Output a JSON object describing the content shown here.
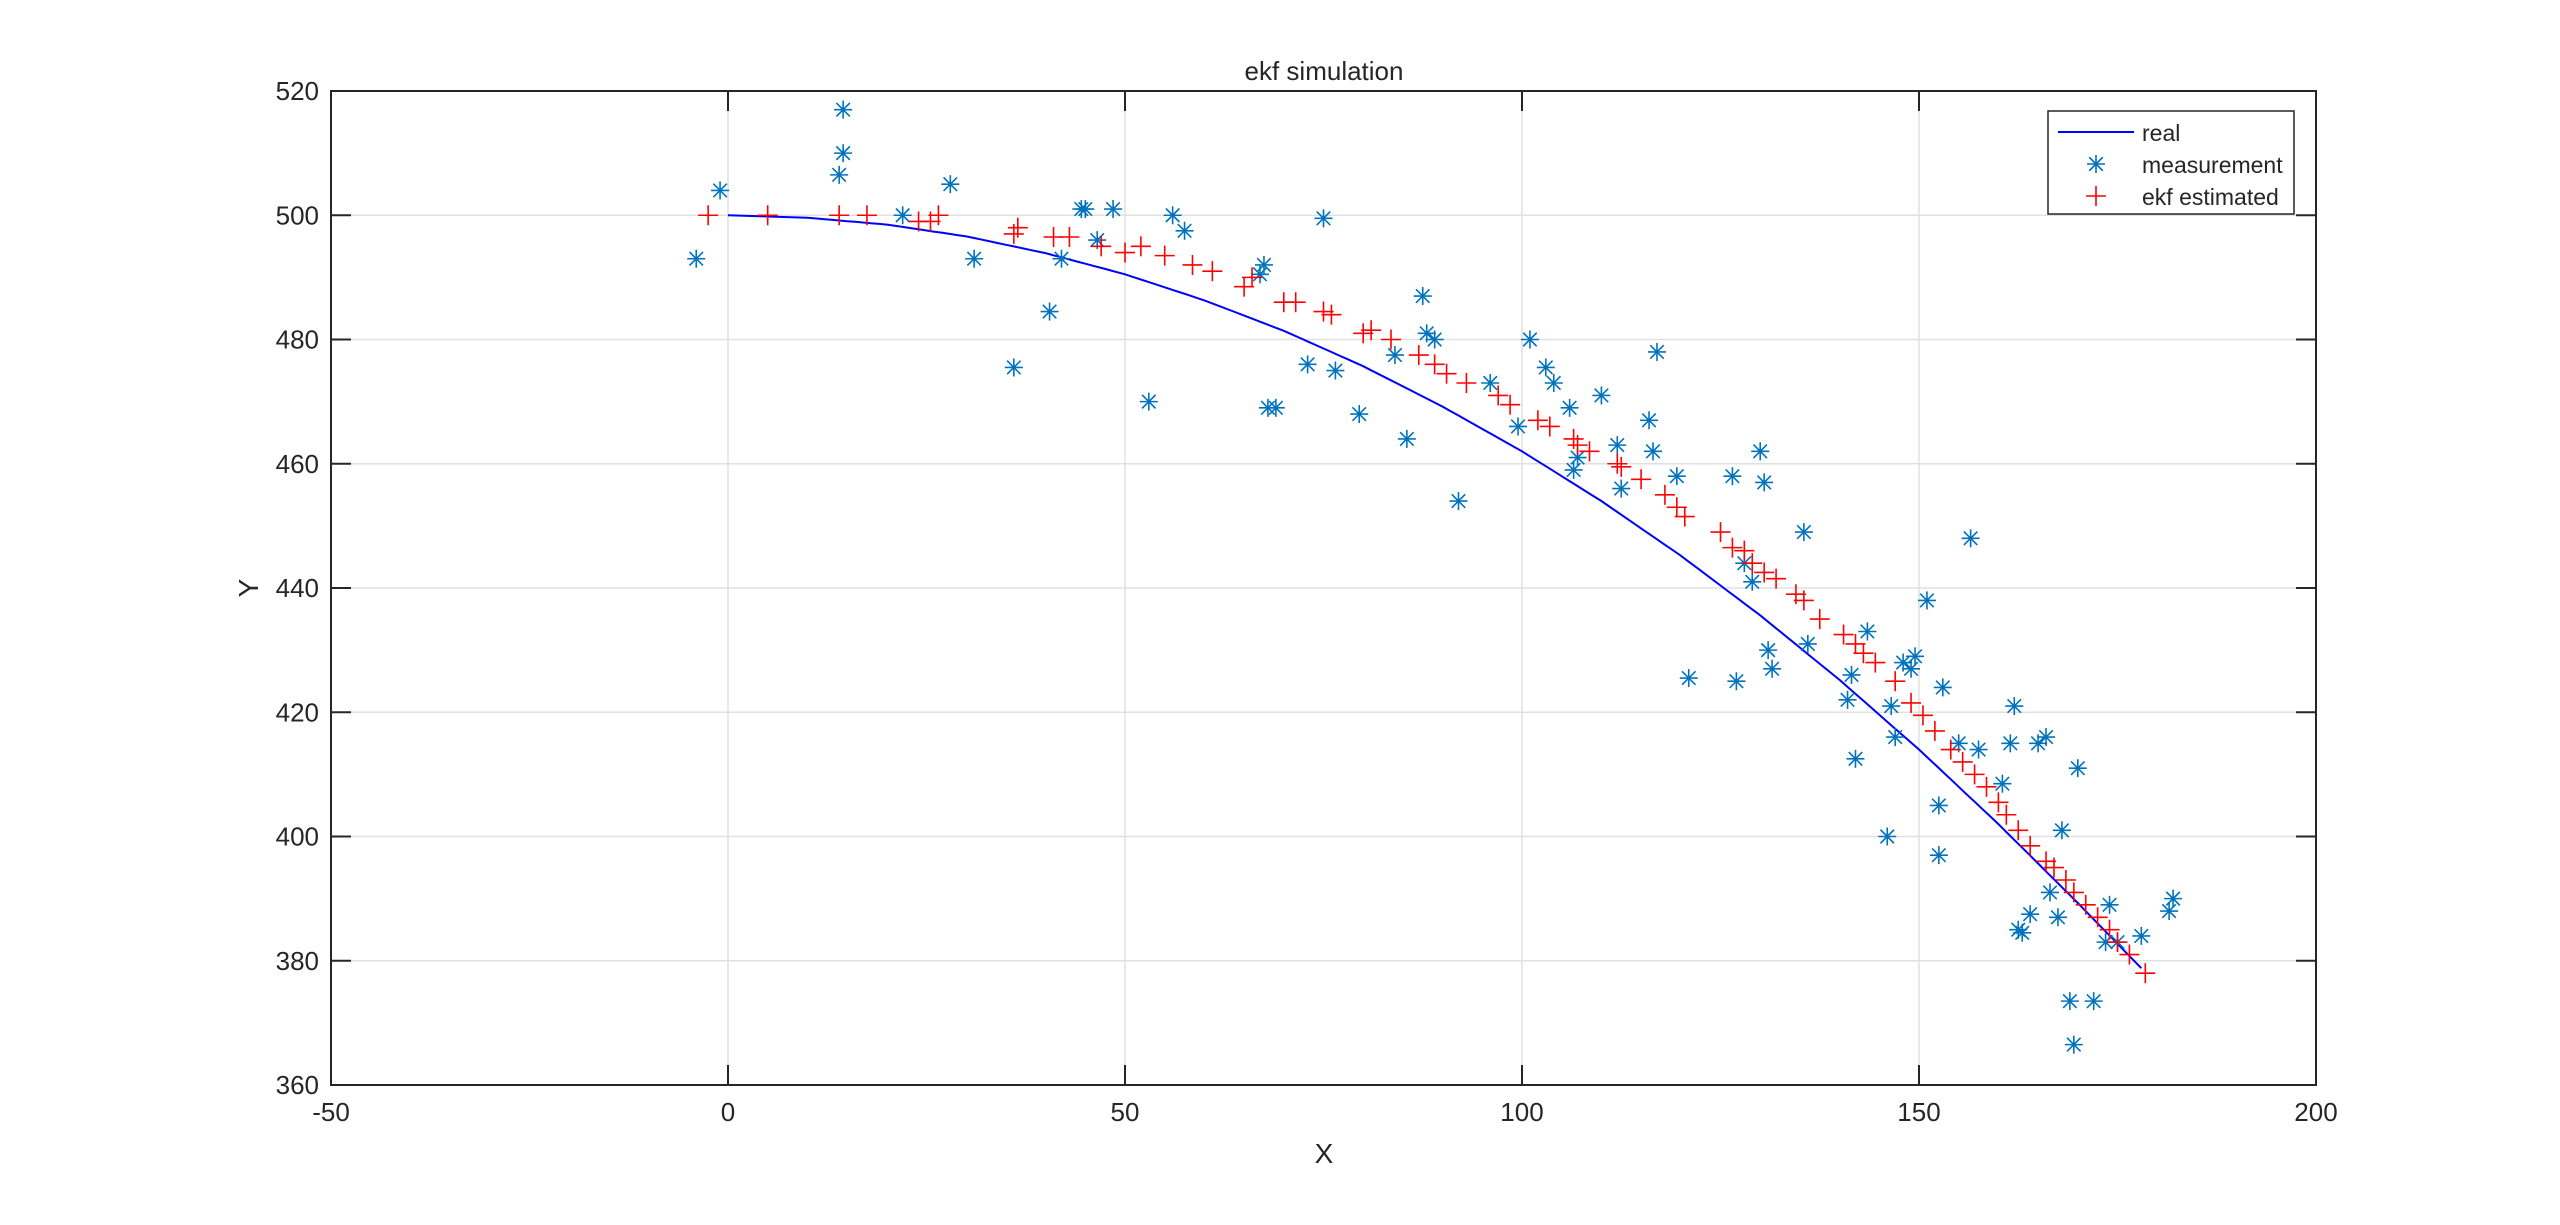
{
  "chart_data": {
    "type": "scatter",
    "title": "ekf simulation",
    "xlabel": "X",
    "ylabel": "Y",
    "xlim": [
      -50,
      200
    ],
    "ylim": [
      360,
      520
    ],
    "xticks": [
      -50,
      0,
      50,
      100,
      150,
      200
    ],
    "yticks": [
      360,
      380,
      400,
      420,
      440,
      460,
      480,
      500,
      520
    ],
    "grid": true,
    "legend_position": "northeast",
    "legend": [
      "real",
      "measurement",
      "ekf estimated"
    ],
    "colors": {
      "real": "#0000ff",
      "measurement": "#0072bd",
      "ekf": "#ff0000",
      "grid": "#e0e0e0",
      "axis": "#262626"
    },
    "series": [
      {
        "name": "real",
        "style": "line",
        "x": [
          0,
          10,
          20,
          30,
          40,
          50,
          60,
          70,
          80,
          90,
          100,
          110,
          120,
          130,
          140,
          150,
          160,
          170,
          178
        ],
        "y": [
          500,
          499.6,
          498.5,
          496.6,
          493.9,
          490.5,
          486.3,
          481.4,
          475.7,
          469.2,
          462.0,
          454.0,
          445.2,
          435.6,
          425.2,
          414.0,
          402.0,
          389.3,
          378.8
        ]
      },
      {
        "name": "measurement",
        "style": "asterisk",
        "x": [
          -4,
          -1,
          14,
          14.5,
          14.5,
          22,
          28,
          31,
          36,
          40.5,
          42,
          44.5,
          45,
          46.5,
          48.5,
          53,
          56,
          57.5,
          67,
          67.5,
          68,
          69,
          73,
          75,
          76.5,
          79.5,
          84,
          85.5,
          87.5,
          88,
          89,
          92,
          96,
          99.5,
          101,
          103,
          104,
          106,
          106.5,
          107,
          110,
          112,
          112.5,
          116,
          116.5,
          117,
          119.5,
          121,
          126.5,
          127,
          128,
          129,
          130,
          130.5,
          131,
          131.5,
          135.5,
          136,
          141,
          141.5,
          142,
          143.5,
          146,
          146.5,
          147,
          148,
          149,
          149.5,
          151,
          152.5,
          152.5,
          153,
          155,
          156.5,
          157.5,
          160.5,
          161.5,
          162,
          162.5,
          163,
          164,
          165,
          166,
          166.5,
          167.5,
          168,
          169,
          169.5,
          170,
          172,
          173.5,
          174,
          175,
          178,
          181.5,
          182
        ],
        "y": [
          493,
          504,
          506.5,
          510,
          517,
          500,
          505,
          493,
          475.5,
          484.5,
          493,
          501,
          501,
          496,
          501,
          470,
          500,
          497.5,
          490.5,
          492,
          469,
          469,
          476,
          499.5,
          475,
          468,
          477.5,
          464,
          487,
          481,
          480,
          454,
          473,
          466,
          480,
          475.5,
          473,
          469,
          459,
          461,
          471,
          463,
          456,
          467,
          462,
          478,
          458,
          425.5,
          458,
          425,
          444,
          441,
          462,
          457,
          430,
          427,
          449,
          431,
          422,
          426,
          412.5,
          433,
          400,
          421,
          416,
          428,
          427,
          429,
          438,
          397,
          405,
          424,
          415,
          448,
          414,
          408.5,
          415,
          421,
          385,
          384.5,
          387.5,
          415,
          416,
          391,
          387,
          401,
          373.5,
          366.5,
          411,
          373.5,
          383,
          389,
          383,
          384,
          388,
          390
        ]
      },
      {
        "name": "ekf estimated",
        "style": "plus",
        "x": [
          -2.5,
          5,
          14,
          17.5,
          24,
          25.5,
          26.5,
          36,
          36.5,
          41,
          43,
          47,
          50,
          52,
          55,
          58.5,
          61,
          65,
          66,
          70,
          71.5,
          75,
          76,
          80,
          81,
          83.5,
          87,
          89,
          90.5,
          93,
          97,
          98.5,
          102,
          103.5,
          106.5,
          107,
          108.5,
          112,
          112.5,
          115,
          118,
          119.5,
          120.5,
          125,
          126.5,
          128,
          129,
          130.5,
          132,
          134.5,
          135.5,
          137.5,
          140.5,
          142,
          143,
          144.5,
          147,
          149,
          150.5,
          152,
          154,
          155.5,
          157,
          158.5,
          160,
          161,
          162.5,
          164,
          166,
          167,
          168.5,
          169.5,
          171,
          172.5,
          174,
          175,
          176.5,
          178.5
        ],
        "y": [
          500,
          500,
          500,
          500,
          499,
          499,
          500,
          497,
          498,
          496.5,
          496.5,
          495,
          494,
          495,
          493.5,
          492,
          491,
          488.5,
          490,
          486,
          486,
          484.5,
          484,
          481,
          481.5,
          480,
          477.5,
          476,
          474.5,
          473,
          471,
          469.5,
          467,
          466,
          464,
          463,
          462,
          460,
          459.5,
          457.5,
          455,
          453,
          451.5,
          449,
          446.5,
          446,
          444,
          442.5,
          441.5,
          439,
          438,
          435,
          432.5,
          431,
          429.5,
          428,
          425,
          421.5,
          419.5,
          417,
          414,
          412,
          410,
          408,
          405.5,
          403.5,
          401,
          398.5,
          396,
          395,
          393,
          391,
          389,
          387,
          385,
          383,
          381,
          378
        ]
      }
    ]
  }
}
